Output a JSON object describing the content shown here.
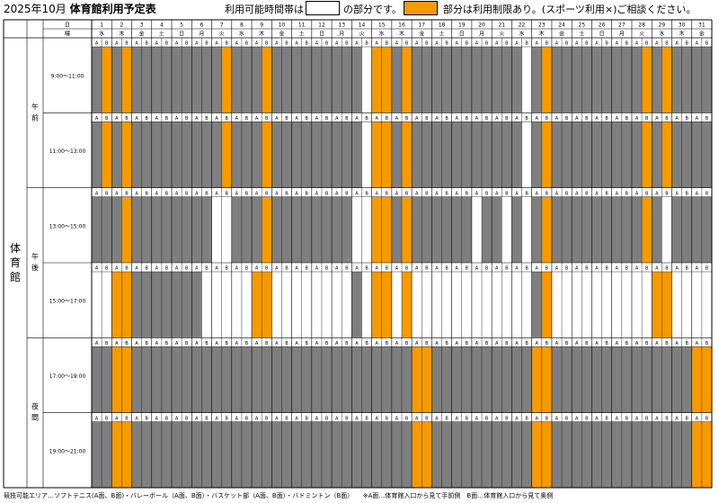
{
  "header": {
    "title_prefix": "2025年10月",
    "title_main": "体育館利用予定表",
    "legend_available": "利用可能時間帯は",
    "legend_available_suffix": "の部分です。",
    "legend_restricted": "部分は利用制限あり。(スポーツ利用×)ご相談ください。"
  },
  "table": {
    "day_header": "日",
    "weekday_header": "曜",
    "facility": "体育館",
    "sub_a": "A",
    "sub_b": "B",
    "days": [
      {
        "d": "1",
        "w": "水"
      },
      {
        "d": "2",
        "w": "木"
      },
      {
        "d": "3",
        "w": "金"
      },
      {
        "d": "4",
        "w": "土"
      },
      {
        "d": "5",
        "w": "日"
      },
      {
        "d": "6",
        "w": "月"
      },
      {
        "d": "7",
        "w": "火"
      },
      {
        "d": "8",
        "w": "水"
      },
      {
        "d": "9",
        "w": "木"
      },
      {
        "d": "10",
        "w": "金"
      },
      {
        "d": "11",
        "w": "土"
      },
      {
        "d": "12",
        "w": "日"
      },
      {
        "d": "13",
        "w": "月"
      },
      {
        "d": "14",
        "w": "火"
      },
      {
        "d": "15",
        "w": "水"
      },
      {
        "d": "16",
        "w": "木"
      },
      {
        "d": "17",
        "w": "金"
      },
      {
        "d": "18",
        "w": "土"
      },
      {
        "d": "19",
        "w": "日"
      },
      {
        "d": "20",
        "w": "月"
      },
      {
        "d": "21",
        "w": "火"
      },
      {
        "d": "22",
        "w": "水"
      },
      {
        "d": "23",
        "w": "木"
      },
      {
        "d": "24",
        "w": "金"
      },
      {
        "d": "25",
        "w": "土"
      },
      {
        "d": "26",
        "w": "日"
      },
      {
        "d": "27",
        "w": "月"
      },
      {
        "d": "28",
        "w": "火"
      },
      {
        "d": "29",
        "w": "水"
      },
      {
        "d": "30",
        "w": "木"
      },
      {
        "d": "31",
        "w": "金"
      }
    ],
    "periods": [
      {
        "label": "午前",
        "slots": [
          0,
          1
        ]
      },
      {
        "label": "午後",
        "slots": [
          2,
          3
        ]
      },
      {
        "label": "夜間",
        "slots": [
          4,
          5
        ]
      }
    ],
    "slots": [
      {
        "time": "9:00～11:00",
        "O": [
          [
            1,
            2
          ],
          [
            2,
            2
          ],
          [
            7,
            2
          ],
          [
            9,
            2
          ],
          [
            15,
            1
          ],
          [
            15,
            2
          ],
          [
            16,
            2
          ],
          [
            23,
            2
          ],
          [
            28,
            2
          ],
          [
            29,
            2
          ]
        ],
        "W": [
          [
            14,
            2
          ],
          [
            22,
            2
          ]
        ]
      },
      {
        "time": "11:00～13:00",
        "O": [
          [
            1,
            2
          ],
          [
            2,
            2
          ],
          [
            7,
            2
          ],
          [
            9,
            2
          ],
          [
            15,
            1
          ],
          [
            15,
            2
          ],
          [
            16,
            2
          ],
          [
            23,
            2
          ],
          [
            28,
            2
          ],
          [
            29,
            2
          ]
        ],
        "W": [
          [
            14,
            2
          ],
          [
            22,
            2
          ]
        ]
      },
      {
        "time": "13:00～15:00",
        "O": [
          [
            2,
            2
          ],
          [
            9,
            2
          ],
          [
            15,
            1
          ],
          [
            15,
            2
          ],
          [
            16,
            2
          ],
          [
            23,
            2
          ],
          [
            28,
            2
          ]
        ],
        "W": [
          [
            7,
            1
          ],
          [
            7,
            2
          ],
          [
            14,
            1
          ],
          [
            14,
            2
          ],
          [
            20,
            1
          ],
          [
            21,
            2
          ],
          [
            22,
            2
          ],
          [
            29,
            2
          ]
        ]
      },
      {
        "time": "15:00～17:00",
        "O": [
          [
            2,
            1
          ],
          [
            2,
            2
          ],
          [
            9,
            1
          ],
          [
            9,
            2
          ],
          [
            15,
            1
          ],
          [
            15,
            2
          ],
          [
            16,
            2
          ],
          [
            23,
            2
          ],
          [
            29,
            1
          ],
          [
            29,
            2
          ]
        ],
        "W": [
          [
            1,
            1
          ],
          [
            1,
            2
          ],
          [
            6,
            2
          ],
          [
            7,
            1
          ],
          [
            7,
            2
          ],
          [
            8,
            1
          ],
          [
            8,
            2
          ],
          [
            10,
            1
          ],
          [
            10,
            2
          ],
          [
            11,
            1
          ],
          [
            11,
            2
          ],
          [
            12,
            1
          ],
          [
            12,
            2
          ],
          [
            13,
            1
          ],
          [
            13,
            2
          ],
          [
            14,
            2
          ],
          [
            16,
            1
          ],
          [
            17,
            1
          ],
          [
            17,
            2
          ],
          [
            18,
            1
          ],
          [
            18,
            2
          ],
          [
            19,
            1
          ],
          [
            19,
            2
          ],
          [
            20,
            1
          ],
          [
            20,
            2
          ],
          [
            21,
            1
          ],
          [
            21,
            2
          ],
          [
            22,
            1
          ],
          [
            22,
            2
          ],
          [
            24,
            1
          ],
          [
            24,
            2
          ],
          [
            25,
            1
          ],
          [
            25,
            2
          ],
          [
            26,
            1
          ],
          [
            26,
            2
          ],
          [
            27,
            1
          ],
          [
            27,
            2
          ],
          [
            28,
            1
          ],
          [
            28,
            2
          ],
          [
            30,
            1
          ],
          [
            30,
            2
          ],
          [
            31,
            1
          ],
          [
            31,
            2
          ]
        ]
      },
      {
        "time": "17:00～19:00",
        "O": [
          [
            2,
            1
          ],
          [
            2,
            2
          ],
          [
            17,
            1
          ],
          [
            17,
            2
          ],
          [
            23,
            1
          ],
          [
            23,
            2
          ],
          [
            31,
            1
          ],
          [
            31,
            2
          ]
        ],
        "W": []
      },
      {
        "time": "19:00～21:00",
        "O": [
          [
            2,
            1
          ],
          [
            2,
            2
          ],
          [
            17,
            1
          ],
          [
            17,
            2
          ],
          [
            23,
            1
          ],
          [
            23,
            2
          ],
          [
            31,
            1
          ],
          [
            31,
            2
          ]
        ],
        "W": []
      }
    ]
  },
  "footer": "競技可能エリア…ソフトテニス(A面、B面)・バレーボール（A面、B面）・バスケット部（A面、B面）・バドミントン（B面）　　※A面…体育館入口から見て手前側　B面…体育館入口から見て奥側",
  "colors": {
    "restricted": "#f59a00",
    "unavailable": "#7f7f7f",
    "available": "#ffffff",
    "grid": "#000000"
  }
}
